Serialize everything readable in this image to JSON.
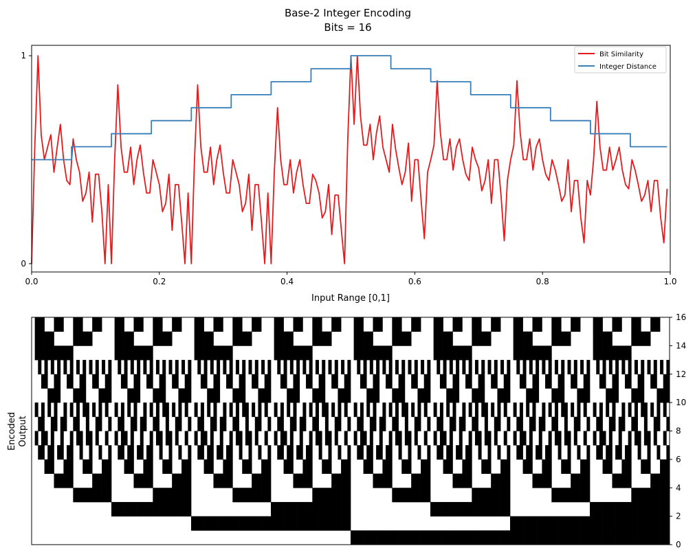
{
  "figure": {
    "title_line1": "Base-2 Integer Encoding",
    "title_line2": "Bits = 16"
  },
  "chart_data": [
    {
      "type": "line",
      "title": "",
      "xlabel": "Input Range [0,1]",
      "ylabel": "",
      "xlim": [
        0,
        1
      ],
      "ylim": [
        -0.04,
        1.05
      ],
      "x_ticks": [
        0.0,
        0.2,
        0.4,
        0.6,
        0.8,
        1.0
      ],
      "x_tick_labels": [
        "0.0",
        "0.2",
        "0.4",
        "0.6",
        "0.8",
        "1.0"
      ],
      "y_ticks": [
        0,
        1
      ],
      "y_tick_labels": [
        "0",
        "1"
      ],
      "legend": {
        "placement": "top-right"
      },
      "grid": false,
      "series": [
        {
          "name": "Bit Similarity",
          "color": "#e41a1c",
          "x": [
            0.0,
            0.005,
            0.01,
            0.015,
            0.02,
            0.025,
            0.03,
            0.035,
            0.04,
            0.045,
            0.05,
            0.055,
            0.06,
            0.065,
            0.07,
            0.075,
            0.08,
            0.085,
            0.09,
            0.095,
            0.1,
            0.105,
            0.11,
            0.115,
            0.12,
            0.125,
            0.13,
            0.135,
            0.14,
            0.145,
            0.15,
            0.155,
            0.16,
            0.165,
            0.17,
            0.175,
            0.18,
            0.185,
            0.19,
            0.195,
            0.2,
            0.205,
            0.21,
            0.215,
            0.22,
            0.225,
            0.23,
            0.235,
            0.24,
            0.245,
            0.25,
            0.255,
            0.26,
            0.265,
            0.27,
            0.275,
            0.28,
            0.285,
            0.29,
            0.295,
            0.3,
            0.305,
            0.31,
            0.315,
            0.32,
            0.325,
            0.33,
            0.335,
            0.34,
            0.345,
            0.35,
            0.355,
            0.36,
            0.365,
            0.37,
            0.375,
            0.38,
            0.385,
            0.39,
            0.395,
            0.4,
            0.405,
            0.41,
            0.415,
            0.42,
            0.425,
            0.43,
            0.435,
            0.44,
            0.445,
            0.45,
            0.455,
            0.46,
            0.465,
            0.47,
            0.475,
            0.48,
            0.485,
            0.49,
            0.495,
            0.5,
            0.505,
            0.51,
            0.515,
            0.52,
            0.525,
            0.53,
            0.535,
            0.54,
            0.545,
            0.55,
            0.555,
            0.56,
            0.565,
            0.57,
            0.575,
            0.58,
            0.585,
            0.59,
            0.595,
            0.6,
            0.605,
            0.61,
            0.615,
            0.62,
            0.625,
            0.63,
            0.635,
            0.64,
            0.645,
            0.65,
            0.655,
            0.66,
            0.665,
            0.67,
            0.675,
            0.68,
            0.685,
            0.69,
            0.695,
            0.7,
            0.705,
            0.71,
            0.715,
            0.72,
            0.725,
            0.73,
            0.735,
            0.74,
            0.745,
            0.75,
            0.755,
            0.76,
            0.765,
            0.77,
            0.775,
            0.78,
            0.785,
            0.79,
            0.795,
            0.8,
            0.805,
            0.81,
            0.815,
            0.82,
            0.825,
            0.83,
            0.835,
            0.84,
            0.845,
            0.85,
            0.855,
            0.86,
            0.865,
            0.87,
            0.875,
            0.88,
            0.885,
            0.89,
            0.895,
            0.9,
            0.905,
            0.91,
            0.915,
            0.92,
            0.925,
            0.93,
            0.935,
            0.94,
            0.945,
            0.95,
            0.955,
            0.96,
            0.965,
            0.97,
            0.975,
            0.98,
            0.985,
            0.99,
            0.995
          ],
          "y": [
            0.0,
            0.56,
            1.0,
            0.62,
            0.5,
            0.56,
            0.62,
            0.44,
            0.56,
            0.67,
            0.5,
            0.4,
            0.38,
            0.6,
            0.5,
            0.44,
            0.3,
            0.34,
            0.44,
            0.2,
            0.43,
            0.43,
            0.25,
            0.0,
            0.38,
            0.0,
            0.5,
            0.86,
            0.56,
            0.44,
            0.44,
            0.56,
            0.38,
            0.5,
            0.57,
            0.44,
            0.34,
            0.34,
            0.5,
            0.44,
            0.38,
            0.25,
            0.29,
            0.43,
            0.16,
            0.38,
            0.38,
            0.2,
            0.0,
            0.34,
            0.0,
            0.5,
            0.86,
            0.56,
            0.44,
            0.44,
            0.56,
            0.38,
            0.5,
            0.57,
            0.44,
            0.34,
            0.34,
            0.5,
            0.44,
            0.38,
            0.25,
            0.29,
            0.43,
            0.16,
            0.38,
            0.38,
            0.2,
            0.0,
            0.34,
            0.0,
            0.44,
            0.75,
            0.5,
            0.38,
            0.38,
            0.5,
            0.34,
            0.44,
            0.5,
            0.38,
            0.29,
            0.29,
            0.43,
            0.4,
            0.34,
            0.22,
            0.25,
            0.38,
            0.14,
            0.33,
            0.33,
            0.16,
            0.0,
            0.6,
            1.0,
            0.67,
            1.0,
            0.71,
            0.57,
            0.57,
            0.67,
            0.5,
            0.63,
            0.71,
            0.56,
            0.5,
            0.44,
            0.67,
            0.55,
            0.46,
            0.38,
            0.44,
            0.58,
            0.3,
            0.5,
            0.5,
            0.3,
            0.12,
            0.44,
            0.5,
            0.57,
            0.88,
            0.63,
            0.5,
            0.5,
            0.6,
            0.45,
            0.56,
            0.6,
            0.5,
            0.43,
            0.4,
            0.56,
            0.5,
            0.46,
            0.35,
            0.4,
            0.5,
            0.29,
            0.5,
            0.5,
            0.33,
            0.11,
            0.4,
            0.5,
            0.57,
            0.88,
            0.63,
            0.5,
            0.5,
            0.6,
            0.45,
            0.56,
            0.6,
            0.5,
            0.43,
            0.4,
            0.5,
            0.45,
            0.38,
            0.3,
            0.33,
            0.5,
            0.25,
            0.4,
            0.4,
            0.22,
            0.1,
            0.4,
            0.33,
            0.5,
            0.78,
            0.56,
            0.45,
            0.45,
            0.56,
            0.45,
            0.5,
            0.56,
            0.45,
            0.38,
            0.36,
            0.5,
            0.45,
            0.38,
            0.3,
            0.33,
            0.4,
            0.25,
            0.4,
            0.4,
            0.22,
            0.1,
            0.36
          ]
        },
        {
          "name": "Integer Distance",
          "color": "#377eb8",
          "x": [
            0.0,
            0.0625,
            0.0625,
            0.125,
            0.125,
            0.1875,
            0.1875,
            0.25,
            0.25,
            0.3125,
            0.3125,
            0.375,
            0.375,
            0.4375,
            0.4375,
            0.5,
            0.5,
            0.5625,
            0.5625,
            0.625,
            0.625,
            0.6875,
            0.6875,
            0.75,
            0.75,
            0.8125,
            0.8125,
            0.875,
            0.875,
            0.9375,
            0.9375,
            0.995
          ],
          "y": [
            0.5,
            0.5,
            0.5625,
            0.5625,
            0.625,
            0.625,
            0.6875,
            0.6875,
            0.75,
            0.75,
            0.8125,
            0.8125,
            0.875,
            0.875,
            0.9375,
            0.9375,
            1.0,
            1.0,
            0.9375,
            0.9375,
            0.875,
            0.875,
            0.8125,
            0.8125,
            0.75,
            0.75,
            0.6875,
            0.6875,
            0.625,
            0.625,
            0.5625,
            0.5625
          ]
        }
      ]
    },
    {
      "type": "heatmap",
      "title": "",
      "xlabel": "",
      "ylabel_line1": "Encoded",
      "ylabel_line2": "Output",
      "rows": 16,
      "columns": 200,
      "encoding": "base-2 integer, 16 bits",
      "ylim": [
        0,
        16
      ],
      "y_ticks": [
        0,
        2,
        4,
        6,
        8,
        10,
        12,
        14,
        16
      ],
      "y_tick_labels": [
        "0",
        "2",
        "4",
        "6",
        "8",
        "10",
        "12",
        "14",
        "16"
      ],
      "colors": {
        "on": "#000000",
        "off": "#ffffff"
      }
    }
  ]
}
